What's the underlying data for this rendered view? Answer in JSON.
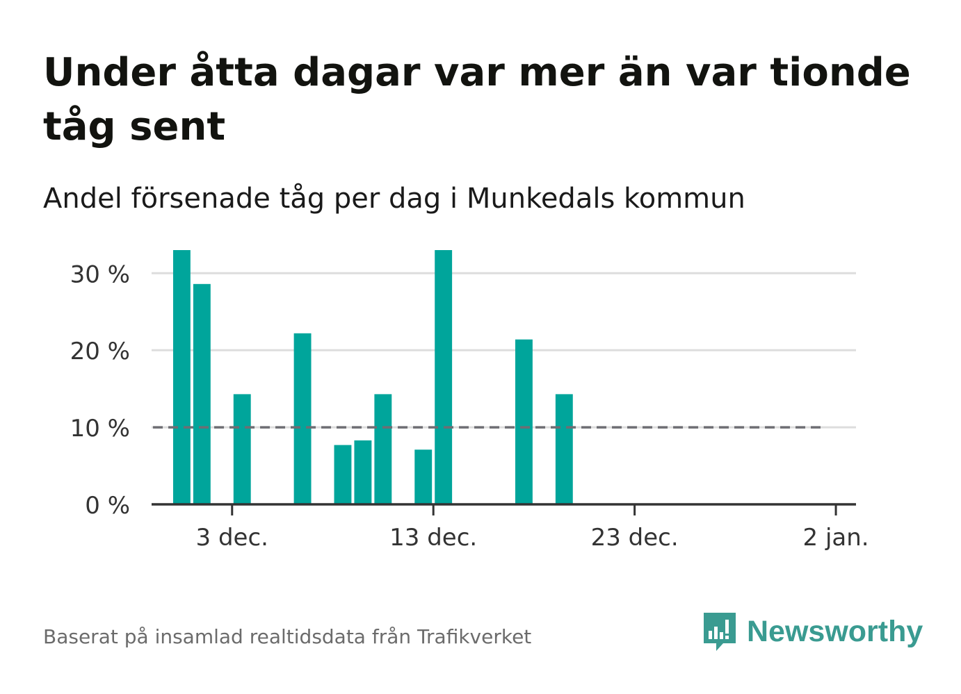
{
  "header": {
    "title": "Under åtta dagar var mer än var tionde tåg sent",
    "subtitle": "Andel försenade tåg per dag i Munkedals kommun"
  },
  "footer": {
    "source": "Baserat på insamlad realtidsdata från Trafikverket",
    "brand": "Newsworthy"
  },
  "colors": {
    "bar": "#00a59b",
    "reference_line": "#6e6e73",
    "grid": "#dddddd",
    "axis": "#333333",
    "brand": "#3a9b91"
  },
  "icons": {
    "logo": "bar-chart-speech-bubble-icon"
  },
  "chart_data": {
    "type": "bar",
    "unit": "%",
    "ylim": [
      0,
      33
    ],
    "yticks": [
      0,
      10,
      20,
      30
    ],
    "ytick_labels": [
      "0 %",
      "10 %",
      "20 %",
      "30 %"
    ],
    "xlim": [
      "2023-11-29",
      "2024-01-03"
    ],
    "xticks": [
      "2023-12-03",
      "2023-12-13",
      "2023-12-23",
      "2024-01-02"
    ],
    "xtick_labels": [
      "3 dec.",
      "13 dec.",
      "23 dec.",
      "2 jan."
    ],
    "grid": true,
    "reference_line": {
      "value": 10,
      "from": "2023-11-29",
      "to": "2024-01-01",
      "style": "dashed"
    },
    "points": [
      {
        "date": "2023-11-30",
        "value": 33.3
      },
      {
        "date": "2023-12-01",
        "value": 28.6
      },
      {
        "date": "2023-12-03",
        "value": 14.3
      },
      {
        "date": "2023-12-06",
        "value": 22.2
      },
      {
        "date": "2023-12-08",
        "value": 7.7
      },
      {
        "date": "2023-12-09",
        "value": 8.3
      },
      {
        "date": "2023-12-10",
        "value": 14.3
      },
      {
        "date": "2023-12-12",
        "value": 7.1
      },
      {
        "date": "2023-12-13",
        "value": 33.3
      },
      {
        "date": "2023-12-17",
        "value": 21.4
      },
      {
        "date": "2023-12-19",
        "value": 14.3
      }
    ]
  }
}
